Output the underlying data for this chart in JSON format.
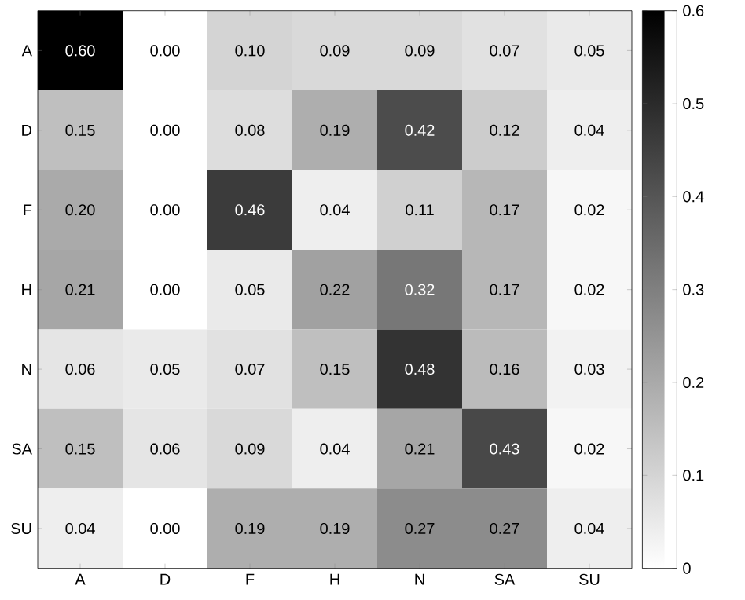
{
  "chart_data": {
    "type": "heatmap",
    "categories": [
      "A",
      "D",
      "F",
      "H",
      "N",
      "SA",
      "SU"
    ],
    "y_categories": [
      "A",
      "D",
      "F",
      "H",
      "N",
      "SA",
      "SU"
    ],
    "cells": [
      [
        0.6,
        0.0,
        0.1,
        0.09,
        0.09,
        0.07,
        0.05
      ],
      [
        0.15,
        0.0,
        0.08,
        0.19,
        0.42,
        0.12,
        0.04
      ],
      [
        0.2,
        0.0,
        0.46,
        0.04,
        0.11,
        0.17,
        0.02
      ],
      [
        0.21,
        0.0,
        0.05,
        0.22,
        0.32,
        0.17,
        0.02
      ],
      [
        0.06,
        0.05,
        0.07,
        0.15,
        0.48,
        0.16,
        0.03
      ],
      [
        0.15,
        0.06,
        0.09,
        0.04,
        0.21,
        0.43,
        0.02
      ],
      [
        0.04,
        0.0,
        0.19,
        0.19,
        0.27,
        0.27,
        0.04
      ]
    ],
    "cell_labels": [
      [
        "0.60",
        "0.00",
        "0.10",
        "0.09",
        "0.09",
        "0.07",
        "0.05"
      ],
      [
        "0.15",
        "0.00",
        "0.08",
        "0.19",
        "0.42",
        "0.12",
        "0.04"
      ],
      [
        "0.20",
        "0.00",
        "0.46",
        "0.04",
        "0.11",
        "0.17",
        "0.02"
      ],
      [
        "0.21",
        "0.00",
        "0.05",
        "0.22",
        "0.32",
        "0.17",
        "0.02"
      ],
      [
        "0.06",
        "0.05",
        "0.07",
        "0.15",
        "0.48",
        "0.16",
        "0.03"
      ],
      [
        "0.15",
        "0.06",
        "0.09",
        "0.04",
        "0.21",
        "0.43",
        "0.02"
      ],
      [
        "0.04",
        "0.00",
        "0.19",
        "0.19",
        "0.27",
        "0.27",
        "0.04"
      ]
    ],
    "clim": [
      0,
      0.6
    ],
    "cticks": [
      0,
      0.1,
      0.2,
      0.3,
      0.4,
      0.5,
      0.6
    ]
  }
}
